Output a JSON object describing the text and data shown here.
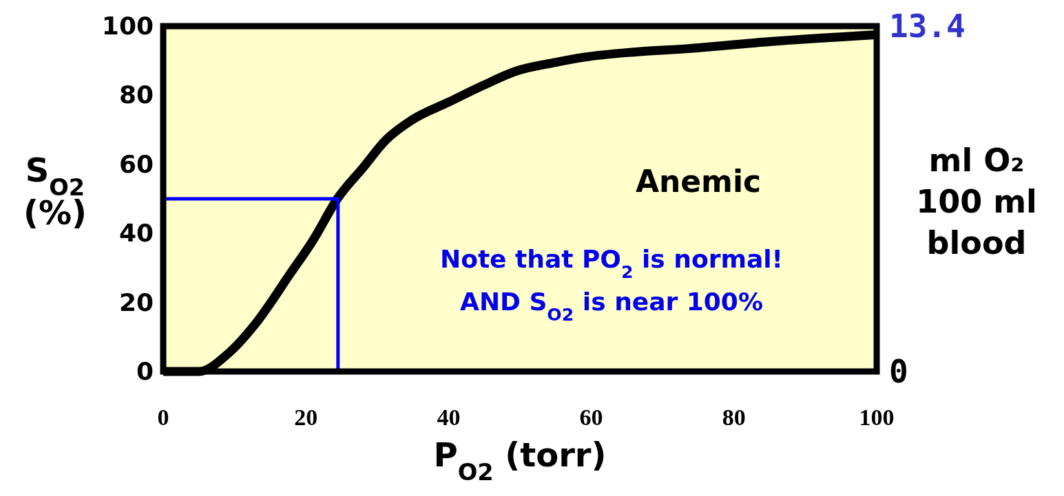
{
  "chart_data": {
    "type": "line",
    "xlabel": "P$_{O2}$ (torr)",
    "ylabel": "S$_{O2}$\n(%)",
    "y2label": "ml O₂\n100 ml\nblood",
    "xlim": [
      0,
      100
    ],
    "xticks": [
      0,
      20,
      40,
      60,
      80,
      100
    ],
    "ylim": [
      0,
      100
    ],
    "yticks": [
      0,
      20,
      40,
      60,
      80,
      100
    ],
    "y2lim": [
      0,
      13.4
    ],
    "y2ticks": [
      0,
      13.4
    ],
    "series": [
      {
        "color": "#000000",
        "x": [
          0,
          2,
          5,
          9,
          13,
          17.7,
          21,
          24.4,
          28,
          31.2,
          35,
          40,
          45,
          49.5,
          55,
          59,
          66,
          73.6,
          85,
          100
        ],
        "values": [
          0,
          0,
          0,
          5,
          14,
          28,
          38,
          50,
          59,
          67,
          73,
          78,
          83,
          87,
          89.5,
          91,
          92.5,
          93.5,
          95.5,
          97.5
        ]
      },
      {
        "color": "#0000ff",
        "x": [
          0,
          24.5,
          24.5
        ],
        "values": [
          50,
          50,
          0
        ]
      }
    ],
    "annotations": [
      "Anemic",
      "Note that PO$_{2}$ is normal!",
      "AND S$_{O2}$ is near 100%"
    ]
  }
}
